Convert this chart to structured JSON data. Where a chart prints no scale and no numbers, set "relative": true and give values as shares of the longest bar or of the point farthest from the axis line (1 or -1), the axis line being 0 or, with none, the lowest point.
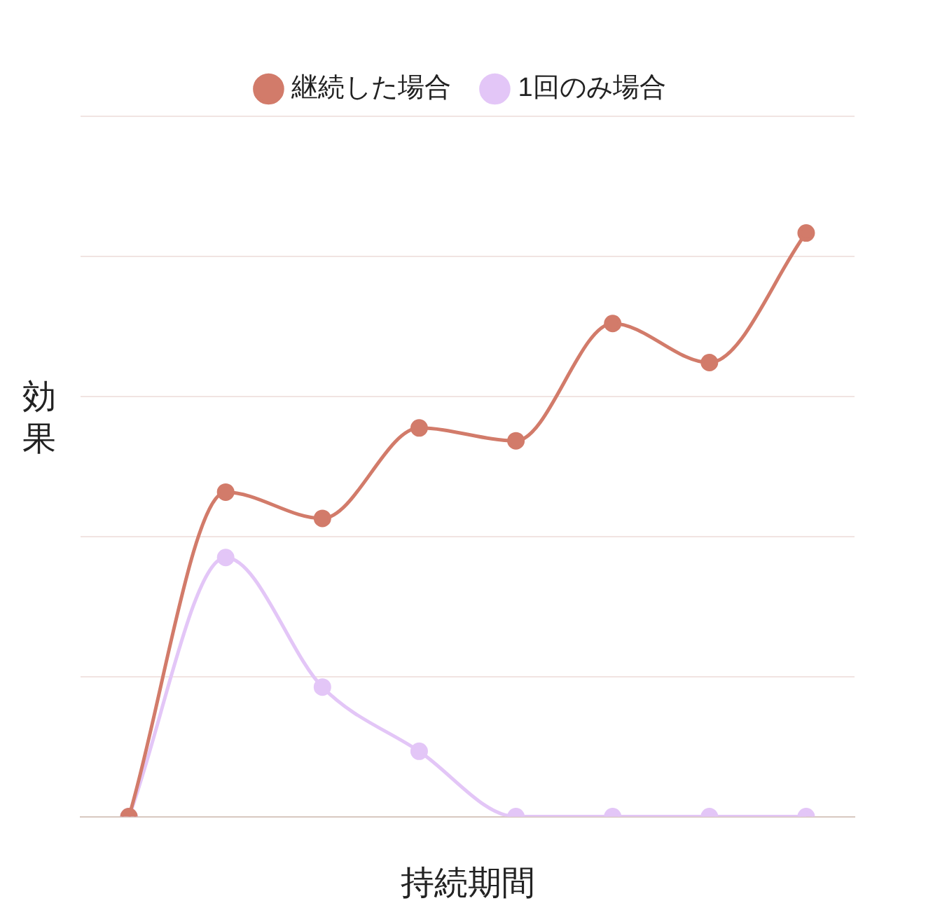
{
  "chart_data": {
    "type": "line",
    "xlabel": "持続期間",
    "ylabel": "効果",
    "relative": true,
    "categories": [
      null,
      null,
      null,
      null,
      null,
      null,
      null,
      null
    ],
    "series": [
      {
        "name": "継続した場合",
        "color": "#d27b6a",
        "values": [
          0,
          0.556,
          0.511,
          0.666,
          0.644,
          0.845,
          0.778,
          1
        ]
      },
      {
        "name": "1回のみ場合",
        "color": "#e3c6f7",
        "values": [
          0,
          0.444,
          0.222,
          0.112,
          0,
          0,
          0,
          0
        ]
      }
    ],
    "legend": "top",
    "grid": "y",
    "marker": "circle",
    "line_style": "solid"
  }
}
